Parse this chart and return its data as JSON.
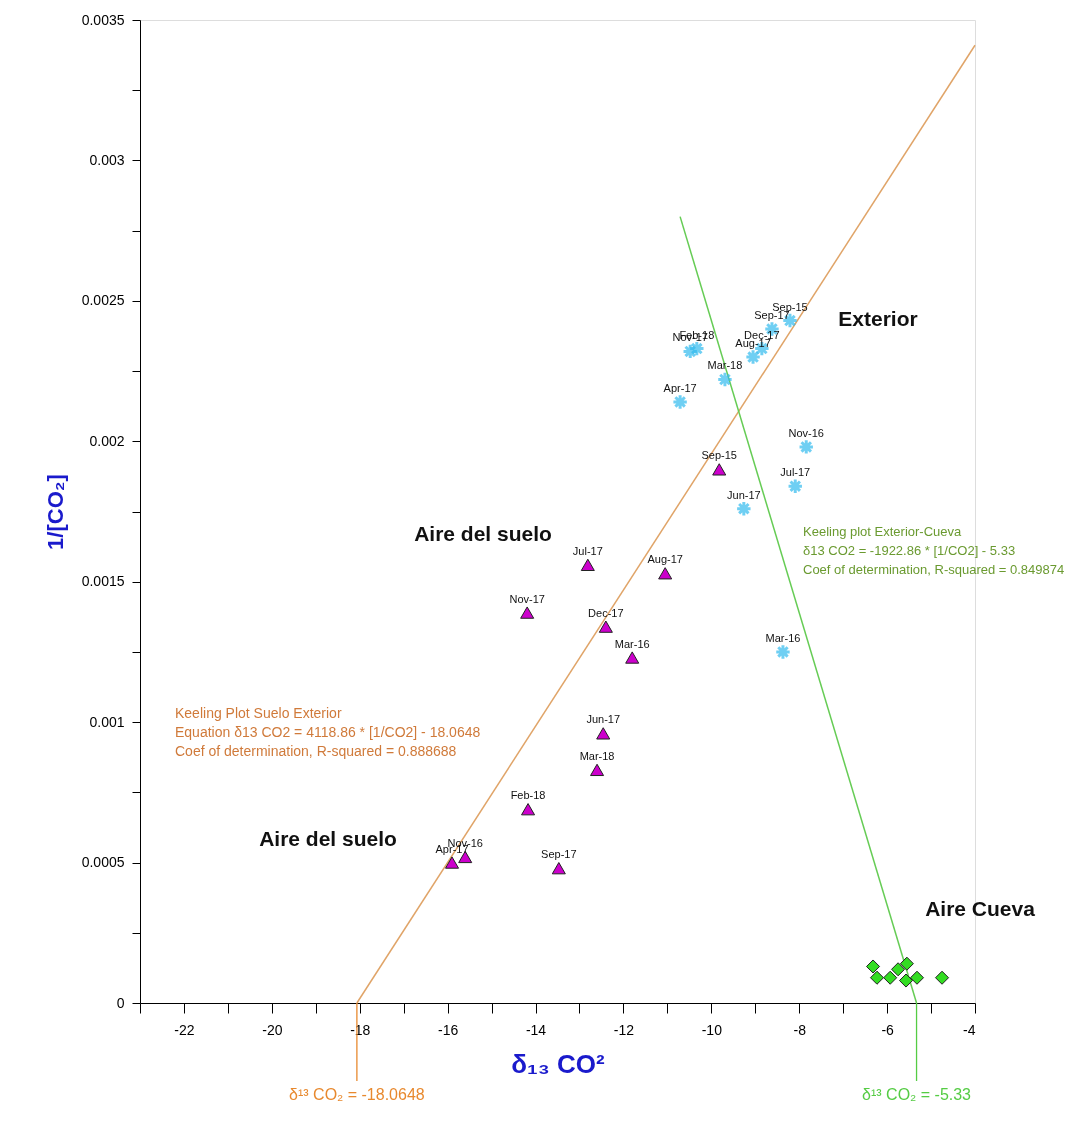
{
  "chart_data": {
    "type": "scatter",
    "xlabel": "δ₁₃ CO²",
    "ylabel": "1/[CO₂]",
    "xlim": [
      -23,
      -4
    ],
    "xticks": [
      {
        "value": -23,
        "label": null
      },
      -22,
      {
        "value": -21,
        "label": null
      },
      -20,
      {
        "value": -19,
        "label": null
      },
      -18,
      {
        "value": -17,
        "label": null
      },
      -16,
      {
        "value": -15,
        "label": null
      },
      -14,
      {
        "value": -13,
        "label": null
      },
      -12,
      {
        "value": -11,
        "label": null
      },
      -10,
      {
        "value": -9,
        "label": null
      },
      -8,
      {
        "value": -7,
        "label": null
      },
      -6,
      {
        "value": -5,
        "label": null
      },
      -4
    ],
    "ylim": [
      0,
      0.0035
    ],
    "yticks": [
      0,
      {
        "value": 0.00025,
        "label": null
      },
      0.0005,
      {
        "value": 0.00075,
        "label": null
      },
      0.001,
      {
        "value": 0.00125,
        "label": null
      },
      0.0015,
      {
        "value": 0.00175,
        "label": null
      },
      0.002,
      {
        "value": 0.00225,
        "label": null
      },
      0.0025,
      {
        "value": 0.00275,
        "label": null
      },
      0.003,
      {
        "value": 0.00325,
        "label": null
      },
      0.0035
    ],
    "grid": false,
    "series": [
      {
        "type": "line",
        "color": "#e0a468",
        "x": [
          -18.0648,
          -4
        ],
        "values": [
          0,
          0.00341
        ]
      },
      {
        "type": "line",
        "color": "#66cc55",
        "x": [
          -10.71,
          -5.33
        ],
        "values": [
          0.0028,
          0
        ]
      },
      {
        "marker": "triangle",
        "color": "#cc00cc",
        "x": [
          -9.82,
          -12.81,
          -11.05,
          -14.19,
          -12.4,
          -11.8,
          -12.46,
          -12.6,
          -14.17,
          -15.9,
          -15.6,
          -13.47
        ],
        "values": [
          0.0019,
          0.00156,
          0.00153,
          0.00139,
          0.00134,
          0.00123,
          0.00096,
          0.00083,
          0.00069,
          0.0005,
          0.00052,
          0.00048
        ],
        "value_labels": [
          "Sep-15",
          "Jul-17",
          "Aug-17",
          "Nov-17",
          "Dec-17",
          "Mar-16",
          "Jun-17",
          "Mar-18",
          "Feb-18",
          "Apr-17",
          "Nov-16",
          "Sep-17"
        ]
      },
      {
        "marker": "cross",
        "color": "#33bbee",
        "x": [
          -8.21,
          -8.62,
          -8.85,
          -9.05,
          -10.48,
          -10.33,
          -9.69,
          -10.71,
          -7.84,
          -8.09,
          -9.26,
          -8.37
        ],
        "values": [
          0.00243,
          0.0024,
          0.00233,
          0.0023,
          0.00232,
          0.00233,
          0.00222,
          0.00214,
          0.00198,
          0.00184,
          0.00176,
          0.00125
        ],
        "value_labels": [
          "Sep-15",
          "Sep-17",
          "Dec-17",
          "Aug-17",
          "Nov-17",
          "Feb-18",
          "Mar-18",
          "Apr-17",
          "Nov-16",
          "Jul-17",
          "Jun-17",
          "Mar-16"
        ]
      },
      {
        "marker": "diamond",
        "color": "#33dd22",
        "x": [
          -6.32,
          -6.23,
          -5.93,
          -5.75,
          -5.55,
          -5.57,
          -5.32,
          -4.75
        ],
        "values": [
          0.00013,
          9e-05,
          9e-05,
          0.00012,
          0.00014,
          8e-05,
          9e-05,
          9e-05
        ]
      }
    ],
    "ref_lines": [
      {
        "axis": "x",
        "value": -18.0648,
        "label": "δ¹³ CO₂ = -18.0648",
        "color": "#e8892e"
      },
      {
        "axis": "x",
        "value": -5.33,
        "label": "δ¹³ CO₂ = -5.33",
        "color": "#55cc44"
      }
    ],
    "annotations": [
      "Exterior",
      "Aire del suelo",
      "Aire del suelo",
      "Aire Cueva",
      "Keeling Plot Suelo Exterior",
      "Equation δ13 CO2 = 4118.86 * [1/CO2] - 18.0648",
      "Coef of determination, R-squared = 0.888688",
      "Keeling plot Exterior-Cueva",
      "δ13 CO2  = -1922.86 * [1/CO2] - 5.33",
      "Coef of determination, R-squared = 0.849874"
    ]
  }
}
